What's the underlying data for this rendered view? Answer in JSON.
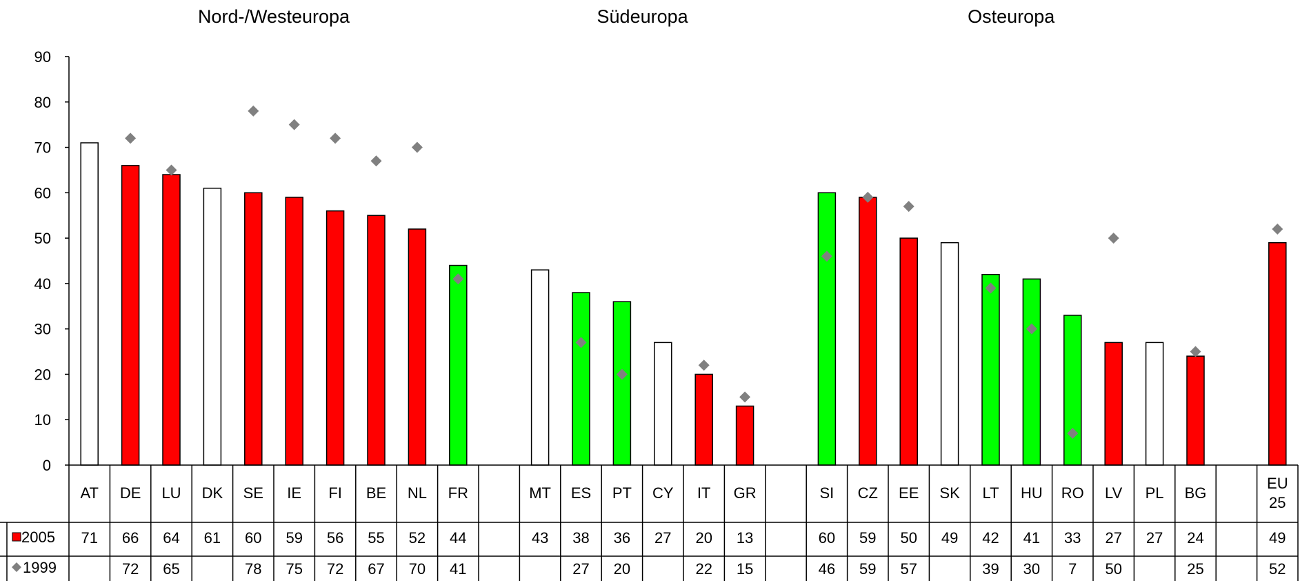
{
  "chart_data": {
    "type": "bar",
    "groups": [
      "Nord-/Westeuropa",
      "Südeuropa",
      "Osteuropa"
    ],
    "categories": [
      "AT",
      "DE",
      "LU",
      "DK",
      "SE",
      "IE",
      "FI",
      "BE",
      "NL",
      "FR",
      "",
      "MT",
      "ES",
      "PT",
      "CY",
      "IT",
      "GR",
      "",
      "SI",
      "CZ",
      "EE",
      "SK",
      "LT",
      "HU",
      "RO",
      "LV",
      "PL",
      "BG",
      "",
      "EU 25"
    ],
    "category_lines": [
      [
        "AT"
      ],
      [
        "DE"
      ],
      [
        "LU"
      ],
      [
        "DK"
      ],
      [
        "SE"
      ],
      [
        "IE"
      ],
      [
        "FI"
      ],
      [
        "BE"
      ],
      [
        "NL"
      ],
      [
        "FR"
      ],
      [
        ""
      ],
      [
        "MT"
      ],
      [
        "ES"
      ],
      [
        "PT"
      ],
      [
        "CY"
      ],
      [
        "IT"
      ],
      [
        "GR"
      ],
      [
        ""
      ],
      [
        "SI"
      ],
      [
        "CZ"
      ],
      [
        "EE"
      ],
      [
        "SK"
      ],
      [
        "LT"
      ],
      [
        "HU"
      ],
      [
        "RO"
      ],
      [
        "LV"
      ],
      [
        "PL"
      ],
      [
        "BG"
      ],
      [
        ""
      ],
      [
        "EU",
        "25"
      ]
    ],
    "series": [
      {
        "name": "2005",
        "values": [
          71,
          66,
          64,
          61,
          60,
          59,
          56,
          55,
          52,
          44,
          null,
          43,
          38,
          36,
          27,
          20,
          13,
          null,
          60,
          59,
          50,
          49,
          42,
          41,
          33,
          27,
          27,
          24,
          null,
          49
        ],
        "bar_colors": [
          "white",
          "red",
          "red",
          "white",
          "red",
          "red",
          "red",
          "red",
          "red",
          "green",
          null,
          "white",
          "green",
          "green",
          "white",
          "red",
          "red",
          null,
          "green",
          "red",
          "red",
          "white",
          "green",
          "green",
          "green",
          "red",
          "white",
          "red",
          null,
          "red"
        ]
      },
      {
        "name": "1999",
        "values": [
          null,
          72,
          65,
          null,
          78,
          75,
          72,
          67,
          70,
          41,
          null,
          null,
          27,
          20,
          null,
          22,
          15,
          null,
          46,
          59,
          57,
          null,
          39,
          30,
          7,
          50,
          null,
          25,
          null,
          52
        ]
      }
    ],
    "ylim": [
      0,
      90
    ],
    "yticks": [
      "0",
      "10",
      "20",
      "30",
      "40",
      "50",
      "60",
      "70",
      "80",
      "90"
    ],
    "grid": false,
    "colors": {
      "red": "#ff0000",
      "green": "#00ff00",
      "white": "#ffffff",
      "marker": "#808080",
      "outline": "#000000"
    }
  }
}
